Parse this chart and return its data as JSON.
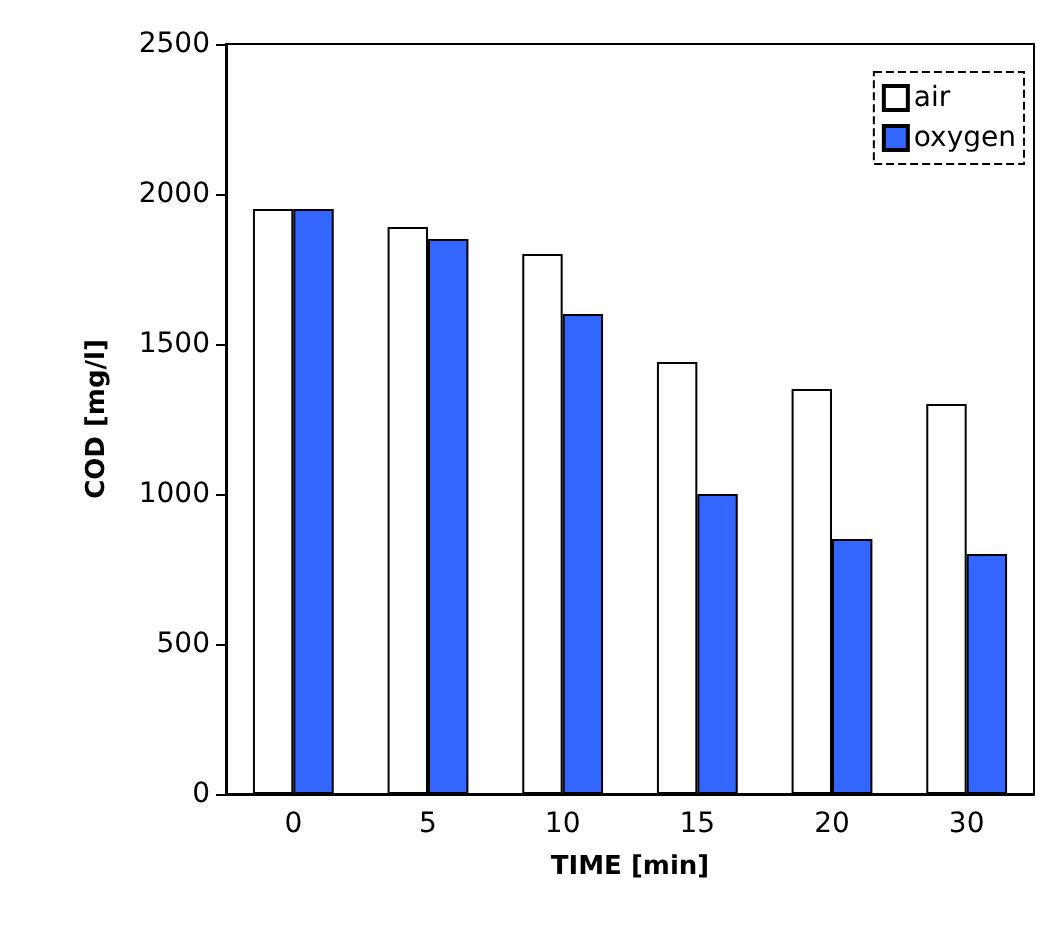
{
  "chart_data": {
    "type": "bar",
    "xlabel": "TIME [min]",
    "ylabel": "COD [mg/l]",
    "categories": [
      "0",
      "5",
      "10",
      "15",
      "20",
      "30"
    ],
    "series": [
      {
        "name": "air",
        "color": "#ffffff",
        "values": [
          1950,
          1890,
          1800,
          1440,
          1350,
          1300
        ]
      },
      {
        "name": "oxygen",
        "color": "#3366ff",
        "values": [
          1950,
          1850,
          1600,
          1000,
          850,
          800
        ]
      }
    ],
    "ylim": [
      0,
      2500
    ],
    "yticks": [
      0,
      500,
      1000,
      1500,
      2000,
      2500
    ],
    "grid": false,
    "legend": "top right"
  }
}
